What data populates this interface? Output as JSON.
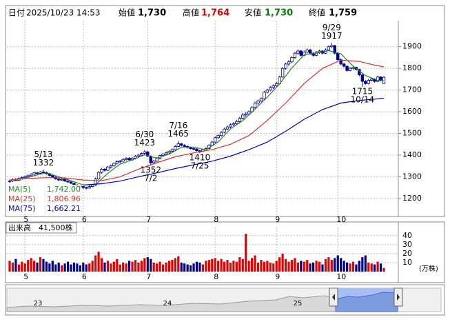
{
  "chart_data": {
    "type": "candlestick",
    "header": [
      {
        "label": "日付",
        "text": "2025/10/23 14:53"
      },
      {
        "label": "始値",
        "value": 1730,
        "value_label": "1,730",
        "color": "#000000"
      },
      {
        "label": "高値",
        "value": 1764,
        "value_label": "1,764",
        "color": "#e60000"
      },
      {
        "label": "安値",
        "value": 1730,
        "value_label": "1,730",
        "color": "#008000"
      },
      {
        "label": "終値",
        "value": 1759,
        "value_label": "1,759",
        "color": "#000000"
      }
    ],
    "candle_colors": {
      "up": "#ffffff",
      "down": "#00008b",
      "edge": "#00008b"
    },
    "ylim": [
      1120,
      2020
    ],
    "yticks": [
      1200,
      1300,
      1400,
      1500,
      1600,
      1700,
      1800,
      1900
    ],
    "grid": true,
    "xticks": [
      5,
      {
        "value": 24,
        "label": "6"
      },
      {
        "value": 45,
        "label": "7"
      },
      {
        "value": 67,
        "label": "8"
      },
      {
        "value": 87,
        "label": "9"
      },
      {
        "value": 107,
        "label": "10"
      }
    ],
    "ohlc": [
      [
        1278,
        1286,
        1272,
        1280
      ],
      [
        1280,
        1292,
        1276,
        1288
      ],
      [
        1288,
        1294,
        1280,
        1284
      ],
      [
        1284,
        1298,
        1280,
        1292
      ],
      [
        1292,
        1302,
        1288,
        1296
      ],
      [
        1296,
        1306,
        1292,
        1300
      ],
      [
        1300,
        1310,
        1296,
        1305
      ],
      [
        1305,
        1316,
        1300,
        1312
      ],
      [
        1312,
        1322,
        1308,
        1318
      ],
      [
        1318,
        1322,
        1310,
        1316
      ],
      [
        1316,
        1326,
        1312,
        1322
      ],
      [
        1322,
        1332,
        1316,
        1320
      ],
      [
        1320,
        1324,
        1310,
        1314
      ],
      [
        1314,
        1318,
        1302,
        1306
      ],
      [
        1306,
        1310,
        1294,
        1298
      ],
      [
        1298,
        1302,
        1286,
        1290
      ],
      [
        1290,
        1294,
        1280,
        1285
      ],
      [
        1285,
        1294,
        1282,
        1288
      ],
      [
        1288,
        1292,
        1276,
        1280
      ],
      [
        1280,
        1284,
        1272,
        1276
      ],
      [
        1276,
        1280,
        1266,
        1270
      ],
      [
        1270,
        1274,
        1258,
        1262
      ],
      [
        1262,
        1266,
        1252,
        1258
      ],
      [
        1258,
        1262,
        1248,
        1255
      ],
      [
        1255,
        1258,
        1244,
        1250
      ],
      [
        1250,
        1254,
        1242,
        1248
      ],
      [
        1248,
        1260,
        1244,
        1255
      ],
      [
        1255,
        1266,
        1250,
        1262
      ],
      [
        1262,
        1296,
        1258,
        1290
      ],
      [
        1290,
        1326,
        1286,
        1320
      ],
      [
        1320,
        1340,
        1314,
        1335
      ],
      [
        1335,
        1340,
        1324,
        1330
      ],
      [
        1330,
        1350,
        1326,
        1345
      ],
      [
        1345,
        1356,
        1338,
        1350
      ],
      [
        1350,
        1366,
        1346,
        1362
      ],
      [
        1362,
        1376,
        1356,
        1370
      ],
      [
        1370,
        1378,
        1362,
        1372
      ],
      [
        1372,
        1386,
        1366,
        1380
      ],
      [
        1380,
        1390,
        1374,
        1385
      ],
      [
        1385,
        1390,
        1372,
        1378
      ],
      [
        1378,
        1390,
        1374,
        1386
      ],
      [
        1386,
        1400,
        1380,
        1395
      ],
      [
        1395,
        1406,
        1390,
        1400
      ],
      [
        1400,
        1412,
        1394,
        1408
      ],
      [
        1408,
        1423,
        1402,
        1415
      ],
      [
        1415,
        1418,
        1390,
        1395
      ],
      [
        1395,
        1398,
        1352,
        1365
      ],
      [
        1365,
        1378,
        1360,
        1372
      ],
      [
        1372,
        1390,
        1368,
        1385
      ],
      [
        1385,
        1402,
        1380,
        1398
      ],
      [
        1398,
        1410,
        1392,
        1405
      ],
      [
        1405,
        1415,
        1400,
        1410
      ],
      [
        1410,
        1422,
        1404,
        1418
      ],
      [
        1418,
        1430,
        1412,
        1425
      ],
      [
        1425,
        1446,
        1420,
        1440
      ],
      [
        1440,
        1465,
        1436,
        1452
      ],
      [
        1452,
        1456,
        1440,
        1445
      ],
      [
        1445,
        1450,
        1436,
        1440
      ],
      [
        1440,
        1444,
        1430,
        1435
      ],
      [
        1435,
        1440,
        1426,
        1430
      ],
      [
        1430,
        1436,
        1422,
        1428
      ],
      [
        1428,
        1432,
        1416,
        1420
      ],
      [
        1420,
        1424,
        1410,
        1418
      ],
      [
        1418,
        1430,
        1414,
        1425
      ],
      [
        1425,
        1436,
        1420,
        1430
      ],
      [
        1430,
        1450,
        1426,
        1445
      ],
      [
        1445,
        1466,
        1440,
        1460
      ],
      [
        1460,
        1486,
        1456,
        1480
      ],
      [
        1480,
        1496,
        1474,
        1490
      ],
      [
        1490,
        1510,
        1484,
        1505
      ],
      [
        1505,
        1526,
        1500,
        1520
      ],
      [
        1520,
        1536,
        1514,
        1530
      ],
      [
        1530,
        1546,
        1524,
        1540
      ],
      [
        1540,
        1552,
        1534,
        1545
      ],
      [
        1545,
        1562,
        1540,
        1555
      ],
      [
        1555,
        1576,
        1550,
        1570
      ],
      [
        1570,
        1594,
        1564,
        1585
      ],
      [
        1585,
        1598,
        1578,
        1590
      ],
      [
        1590,
        1606,
        1584,
        1600
      ],
      [
        1600,
        1626,
        1596,
        1620
      ],
      [
        1620,
        1646,
        1614,
        1640
      ],
      [
        1640,
        1656,
        1632,
        1650
      ],
      [
        1650,
        1666,
        1644,
        1660
      ],
      [
        1660,
        1696,
        1656,
        1690
      ],
      [
        1690,
        1706,
        1684,
        1700
      ],
      [
        1700,
        1718,
        1694,
        1712
      ],
      [
        1712,
        1726,
        1704,
        1720
      ],
      [
        1720,
        1738,
        1714,
        1730
      ],
      [
        1730,
        1766,
        1726,
        1760
      ],
      [
        1760,
        1806,
        1756,
        1800
      ],
      [
        1800,
        1826,
        1794,
        1820
      ],
      [
        1820,
        1838,
        1812,
        1830
      ],
      [
        1830,
        1856,
        1824,
        1850
      ],
      [
        1850,
        1876,
        1844,
        1870
      ],
      [
        1870,
        1888,
        1862,
        1880
      ],
      [
        1880,
        1886,
        1854,
        1860
      ],
      [
        1860,
        1882,
        1856,
        1875
      ],
      [
        1875,
        1892,
        1868,
        1885
      ],
      [
        1885,
        1890,
        1864,
        1870
      ],
      [
        1870,
        1874,
        1854,
        1860
      ],
      [
        1860,
        1880,
        1856,
        1875
      ],
      [
        1875,
        1886,
        1868,
        1880
      ],
      [
        1880,
        1884,
        1864,
        1870
      ],
      [
        1870,
        1892,
        1866,
        1885
      ],
      [
        1885,
        1906,
        1880,
        1900
      ],
      [
        1900,
        1917,
        1894,
        1905
      ],
      [
        1905,
        1908,
        1864,
        1870
      ],
      [
        1870,
        1874,
        1834,
        1840
      ],
      [
        1840,
        1846,
        1814,
        1820
      ],
      [
        1820,
        1826,
        1804,
        1810
      ],
      [
        1810,
        1814,
        1784,
        1790
      ],
      [
        1790,
        1806,
        1786,
        1800
      ],
      [
        1800,
        1810,
        1794,
        1805
      ],
      [
        1805,
        1808,
        1790,
        1795
      ],
      [
        1795,
        1798,
        1764,
        1770
      ],
      [
        1770,
        1774,
        1715,
        1740
      ],
      [
        1740,
        1746,
        1724,
        1730
      ],
      [
        1730,
        1752,
        1726,
        1745
      ],
      [
        1745,
        1758,
        1740,
        1750
      ],
      [
        1750,
        1754,
        1734,
        1740
      ],
      [
        1740,
        1766,
        1736,
        1760
      ],
      [
        1760,
        1764,
        1740,
        1745
      ],
      [
        1730,
        1764,
        1730,
        1759
      ]
    ],
    "ma": [
      {
        "name": "MA(5)",
        "color": "#228b22",
        "value": 1742.0,
        "value_label": "1,742.00",
        "x": [
          4,
          8,
          12,
          16,
          20,
          24,
          28,
          32,
          36,
          40,
          44,
          48,
          52,
          56,
          60,
          64,
          68,
          72,
          76,
          80,
          84,
          88,
          92,
          96,
          100,
          104,
          108,
          112,
          116,
          120,
          122
        ],
        "values": [
          1288,
          1305,
          1318,
          1300,
          1282,
          1262,
          1263,
          1316,
          1358,
          1378,
          1401,
          1386,
          1404,
          1436,
          1437,
          1424,
          1461,
          1521,
          1559,
          1612,
          1668,
          1728,
          1802,
          1862,
          1870,
          1882,
          1867,
          1810,
          1767,
          1745,
          1742
        ]
      },
      {
        "name": "MA(25)",
        "color": "#e03030",
        "value": 1806.96,
        "value_label": "1,806.96",
        "x": [
          0,
          6,
          12,
          18,
          24,
          30,
          36,
          42,
          48,
          54,
          60,
          66,
          72,
          78,
          84,
          90,
          96,
          102,
          108,
          114,
          118,
          122
        ],
        "values": [
          1285,
          1292,
          1296,
          1295,
          1285,
          1282,
          1300,
          1335,
          1365,
          1392,
          1410,
          1425,
          1450,
          1490,
          1560,
          1640,
          1730,
          1800,
          1838,
          1832,
          1818,
          1807
        ]
      },
      {
        "name": "MA(75)",
        "color": "#0000cd",
        "value": 1662.21,
        "value_label": "1,662.21",
        "x": [
          24,
          30,
          36,
          42,
          48,
          54,
          60,
          66,
          72,
          78,
          84,
          90,
          96,
          102,
          108,
          114,
          122
        ],
        "values": [
          1262,
          1268,
          1280,
          1300,
          1318,
          1338,
          1355,
          1372,
          1395,
          1425,
          1460,
          1510,
          1565,
          1610,
          1640,
          1652,
          1662
        ]
      }
    ],
    "annotations": [
      {
        "date": "5/13",
        "value": 1332,
        "index": 11,
        "pos": "above"
      },
      {
        "date": "6/30",
        "value": 1423,
        "index": 44,
        "pos": "above"
      },
      {
        "date": "7/2",
        "value": 1352,
        "index": 46,
        "pos": "below"
      },
      {
        "date": "7/16",
        "value": 1465,
        "index": 55,
        "pos": "above"
      },
      {
        "date": "7/25",
        "value": 1410,
        "index": 62,
        "pos": "below"
      },
      {
        "date": "9/29",
        "value": 1917,
        "index": 105,
        "pos": "above"
      },
      {
        "date": "10/14",
        "value": 1715,
        "index": 115,
        "pos": "below"
      }
    ],
    "volume": {
      "label": "出来高",
      "current": {
        "value": 41500,
        "label": "41,500株"
      },
      "unit": "(万株)",
      "ylim": [
        0,
        49
      ],
      "yticks": [
        10,
        20,
        30,
        40
      ],
      "colors": {
        "up": "#e60000",
        "down": "#00008b"
      },
      "values": [
        12,
        10,
        14,
        8,
        11,
        9,
        13,
        15,
        12,
        10,
        16,
        14,
        11,
        9,
        12,
        8,
        10,
        7,
        9,
        11,
        8,
        10,
        9,
        7,
        10,
        8,
        9,
        12,
        18,
        22,
        15,
        10,
        12,
        9,
        11,
        14,
        8,
        10,
        9,
        12,
        11,
        13,
        10,
        12,
        15,
        16,
        14,
        10,
        9,
        11,
        8,
        10,
        12,
        13,
        15,
        17,
        10,
        9,
        8,
        7,
        9,
        11,
        10,
        8,
        12,
        13,
        14,
        15,
        12,
        14,
        11,
        13,
        10,
        12,
        11,
        16,
        14,
        42,
        12,
        15,
        18,
        10,
        13,
        11,
        12,
        10,
        9,
        12,
        16,
        20,
        14,
        11,
        13,
        15,
        10,
        12,
        11,
        13,
        9,
        10,
        12,
        11,
        8,
        14,
        16,
        13,
        15,
        18,
        15,
        12,
        10,
        9,
        11,
        8,
        12,
        16,
        18,
        10,
        9,
        8,
        11,
        9,
        4.15
      ]
    },
    "navigator": {
      "labels": [
        "23",
        "24",
        "25"
      ]
    }
  }
}
